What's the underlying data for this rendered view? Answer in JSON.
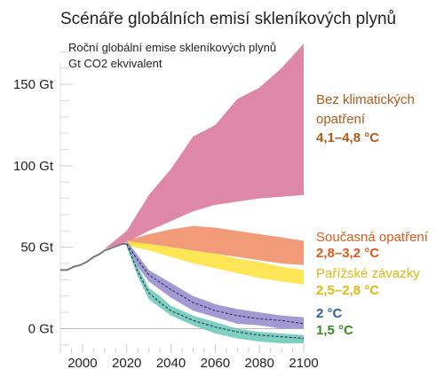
{
  "chart_data": {
    "type": "area",
    "title": "Scénáře globálních emisí skleníkových plynů",
    "subtitle_lines": [
      "Roční globální emise skleníkových plynů",
      "Gt CO2 ekvivalent"
    ],
    "xlim": [
      1990,
      2100
    ],
    "ylim": [
      -15,
      180
    ],
    "x_ticks": [
      2000,
      2020,
      2040,
      2060,
      2080,
      2100
    ],
    "x_tick_labels": [
      "2000",
      "2020",
      "2040",
      "2060",
      "2080",
      "2100"
    ],
    "y_ticks": [
      0,
      50,
      100,
      150
    ],
    "y_tick_labels": [
      "0 Gt",
      "50 Gt",
      "100 Gt",
      "150 Gt"
    ],
    "grid": false,
    "historical": {
      "color": "#777777",
      "x": [
        1990,
        1993,
        1996,
        1999,
        2002,
        2005,
        2008,
        2010,
        2012,
        2014,
        2016,
        2018,
        2020
      ],
      "y": [
        36,
        36,
        38,
        39,
        41,
        44,
        46,
        48,
        49,
        50,
        51,
        52,
        52
      ]
    },
    "series": [
      {
        "name_lines": [
          "Bez klimatických",
          "opatření"
        ],
        "range": "4,1–4,8 °C",
        "color": "#dc7a9d",
        "label_color": "#b25a1a",
        "x": [
          2010,
          2020,
          2030,
          2040,
          2050,
          2060,
          2070,
          2080,
          2090,
          2100
        ],
        "upper": [
          49,
          60,
          82,
          98,
          118,
          125,
          141,
          148,
          160,
          175
        ],
        "lower": [
          49,
          53,
          60,
          66,
          72,
          76,
          78,
          80,
          81,
          82
        ]
      },
      {
        "name_lines": [
          "Současná opatření"
        ],
        "range": "2,8–3,2 °C",
        "color": "#f0906a",
        "label_color": "#e05a1a",
        "x": [
          2020,
          2030,
          2040,
          2050,
          2060,
          2070,
          2080,
          2090,
          2100
        ],
        "upper": [
          54,
          58,
          61,
          63,
          62,
          60,
          58,
          56,
          54
        ],
        "lower": [
          51,
          52,
          50,
          48,
          46,
          44,
          42,
          40,
          39
        ]
      },
      {
        "name_lines": [
          "Pařížské závazky"
        ],
        "range": "2,5–2,8 °C",
        "color": "#ffe344",
        "label_color": "#e0b810",
        "x": [
          2020,
          2030,
          2040,
          2050,
          2060,
          2070,
          2080,
          2090,
          2100
        ],
        "upper": [
          54,
          52,
          50,
          48,
          46,
          43,
          41,
          38,
          36
        ],
        "lower": [
          51,
          48,
          44,
          40,
          37,
          34,
          31,
          29,
          27
        ]
      },
      {
        "name_lines": [
          "2 °C"
        ],
        "range": "",
        "color": "#9a8fce",
        "label_color": "#2a5fa8",
        "x": [
          2020,
          2025,
          2030,
          2040,
          2050,
          2060,
          2070,
          2080,
          2090,
          2100
        ],
        "upper": [
          54,
          45,
          36,
          28,
          20,
          15,
          12,
          10,
          8,
          7
        ],
        "lower": [
          50,
          38,
          29,
          19,
          11,
          7,
          3,
          2,
          0,
          0
        ],
        "median": [
          52,
          42,
          33,
          24,
          16,
          11,
          8,
          6,
          5,
          3
        ]
      },
      {
        "name_lines": [
          "1,5 °C"
        ],
        "range": "",
        "color": "#6fcab8",
        "label_color": "#3a8a20",
        "x": [
          2020,
          2025,
          2030,
          2035,
          2040,
          2050,
          2060,
          2070,
          2080,
          2090,
          2100
        ],
        "upper": [
          54,
          38,
          25,
          20,
          14,
          8,
          4,
          0,
          -2,
          -3,
          -4
        ],
        "lower": [
          50,
          32,
          18,
          13,
          8,
          2,
          -3,
          -6,
          -8,
          -9,
          -9
        ],
        "median": [
          52,
          35,
          22,
          16,
          11,
          5,
          1,
          -2,
          -4,
          -5,
          -6
        ]
      }
    ]
  }
}
